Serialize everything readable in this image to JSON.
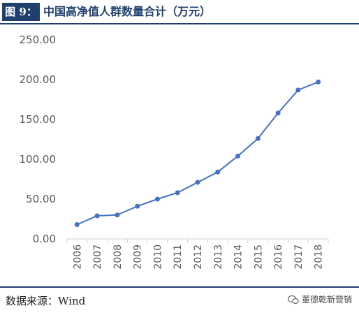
{
  "header": {
    "figure_label": "图 9：",
    "title": "中国高净值人群数量合计（万元）"
  },
  "chart_data": {
    "type": "line",
    "title": "中国高净值人群数量合计（万元）",
    "xlabel": "",
    "ylabel": "",
    "categories": [
      "2006",
      "2007",
      "2008",
      "2009",
      "2010",
      "2011",
      "2012",
      "2013",
      "2014",
      "2015",
      "2016",
      "2017",
      "2018"
    ],
    "series": [
      {
        "values": [
          18,
          29,
          30,
          41,
          50,
          58,
          71,
          84,
          104,
          126,
          158,
          187,
          197
        ]
      }
    ],
    "ylim": [
      0,
      250
    ],
    "yticks": [
      "0.00",
      "50.00",
      "100.00",
      "150.00",
      "200.00",
      "250.00"
    ],
    "ytick_values": [
      0,
      50,
      100,
      150,
      200,
      250
    ],
    "grid": false,
    "legend": "none",
    "line_color": "#4472c4"
  },
  "footer": {
    "source": "数据来源：Wind",
    "watermark": "董德乾新营销"
  }
}
